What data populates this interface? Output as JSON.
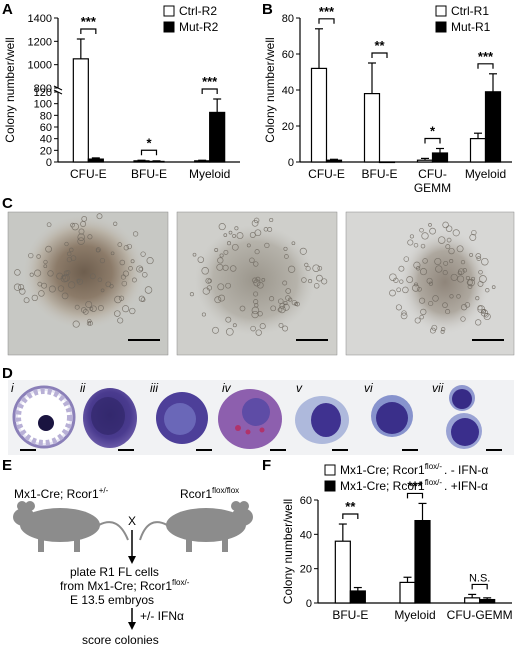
{
  "panels": {
    "A": "A",
    "B": "B",
    "C": "C",
    "D": "D",
    "E": "E",
    "F": "F"
  },
  "chart_data": [
    {
      "id": "A",
      "type": "bar",
      "broken_axis": true,
      "ylabel": "Colony number/well",
      "categories": [
        "CFU-E",
        "BFU-E",
        "Myeloid"
      ],
      "series": [
        {
          "name": "Ctrl-R2",
          "fill": "#ffffff",
          "values": [
            1050,
            2,
            2
          ],
          "errors": [
            170,
            1,
            1
          ]
        },
        {
          "name": "Mut-R2",
          "fill": "#000000",
          "values": [
            5,
            1,
            85
          ],
          "errors": [
            2,
            1,
            23
          ]
        }
      ],
      "ylim_low": [
        0,
        120
      ],
      "ylim_high": [
        800,
        1400
      ],
      "yticks_low": [
        "0",
        "20",
        "40",
        "60",
        "80",
        "100",
        "120"
      ],
      "yticks_high": [
        "800",
        "1000",
        "1200",
        "1400"
      ],
      "significance": [
        "***",
        "*",
        "***"
      ],
      "legend_placement": "top-right"
    },
    {
      "id": "B",
      "type": "bar",
      "ylabel": "Colony number/well",
      "categories": [
        "CFU-E",
        "BFU-E",
        "CFU-\nGEMM",
        "Myeloid"
      ],
      "series": [
        {
          "name": "Ctrl-R1",
          "fill": "#ffffff",
          "values": [
            52,
            38,
            1,
            13
          ],
          "errors": [
            22,
            17,
            1,
            3
          ]
        },
        {
          "name": "Mut-R1",
          "fill": "#000000",
          "values": [
            1,
            0,
            5,
            39
          ],
          "errors": [
            0.5,
            0,
            2.5,
            10
          ]
        }
      ],
      "ylim": [
        0,
        80
      ],
      "yticks": [
        "0",
        "20",
        "40",
        "60",
        "80"
      ],
      "significance": [
        "***",
        "**",
        "*",
        "***"
      ],
      "legend_placement": "top-right"
    },
    {
      "id": "F",
      "type": "bar",
      "ylabel": "Colony number/well",
      "categories": [
        "BFU-E",
        "Myeloid",
        "CFU-GEMM"
      ],
      "series": [
        {
          "name": "Mx1-Cre; Rcor1 flox/- . - IFN-α",
          "fill": "#ffffff",
          "values": [
            36,
            12,
            3
          ],
          "errors": [
            10,
            3,
            2
          ]
        },
        {
          "name": "Mx1-Cre; Rcor1 flox/- . +IFN-α",
          "fill": "#000000",
          "values": [
            7,
            48,
            2
          ],
          "errors": [
            2,
            10,
            1
          ]
        }
      ],
      "ylim": [
        0,
        60
      ],
      "yticks": [
        "0",
        "20",
        "40",
        "60"
      ],
      "significance": [
        "**",
        "***",
        "N.S."
      ],
      "legend_placement": "top"
    }
  ],
  "legendF": {
    "line1_prefix": "Mx1-Cre; Rcor1",
    "line1_sup": "flox/-",
    "line1_suffix": ". - IFN-α",
    "line2_prefix": "Mx1-Cre; Rcor1",
    "line2_sup": "flox/-",
    "line2_suffix": ". +IFN-α"
  },
  "panelD_labels": [
    "i",
    "ii",
    "iii",
    "iv",
    "v",
    "vi",
    "vii"
  ],
  "schematic": {
    "mouse1": "Mx1-Cre; Rcor1",
    "mouse1_sup": "+/-",
    "mouse2": "Rcor1",
    "mouse2_sup": "flox/flox",
    "cross": "X",
    "step1_line1": "plate R1 FL cells",
    "step1_line2": "from Mx1-Cre; Rcor1",
    "step1_line2_sup": "flox/-",
    "step1_line3": "E 13.5 embryos",
    "step2": "+/- IFNα",
    "step3": "score colonies"
  }
}
